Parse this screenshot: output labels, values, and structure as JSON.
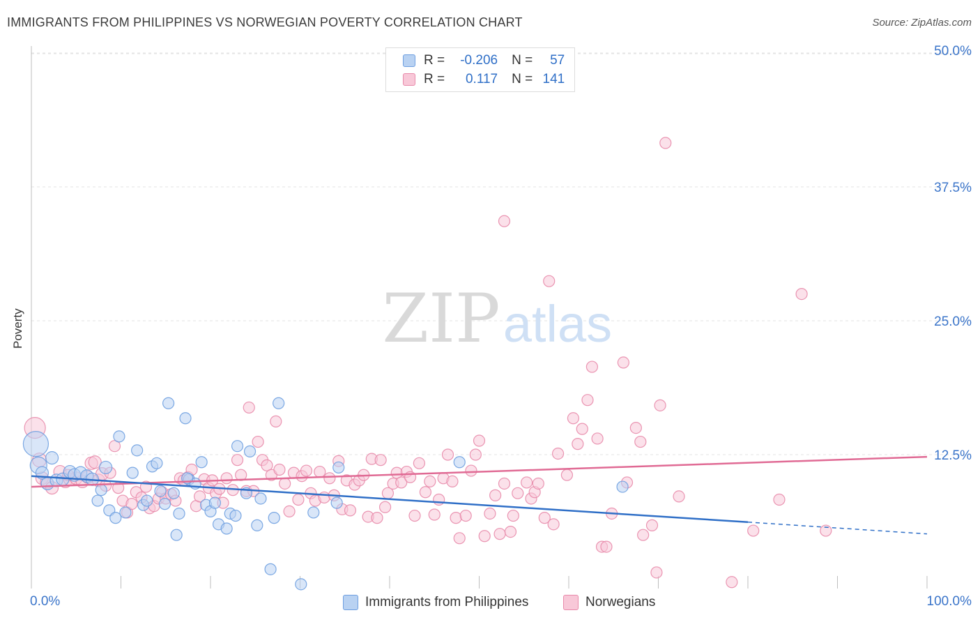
{
  "title": "IMMIGRANTS FROM PHILIPPINES VS NORWEGIAN POVERTY CORRELATION CHART",
  "source": "Source: ZipAtlas.com",
  "watermark": {
    "zip": "ZIP",
    "atlas": "atlas"
  },
  "legend_top": {
    "rows": [
      {
        "r_label": "R =",
        "r_value": "-0.206",
        "n_label": "N =",
        "n_value": "57"
      },
      {
        "r_label": "R =",
        "r_value": "0.117",
        "n_label": "N =",
        "n_value": "141"
      }
    ]
  },
  "legend_bottom": {
    "series1": "Immigrants from Philippines",
    "series2": "Norwegians"
  },
  "colors": {
    "blue_fill": "#b9d2f2",
    "blue_stroke": "#6d9ee0",
    "blue_line": "#2f6fc7",
    "pink_fill": "#f8c8d8",
    "pink_stroke": "#e889aa",
    "pink_line": "#e06a94",
    "axis_text": "#3a74c9",
    "grid": "#e3e3e3"
  },
  "chart_data": {
    "type": "scatter",
    "title": "IMMIGRANTS FROM PHILIPPINES VS NORWEGIAN POVERTY CORRELATION CHART",
    "xlabel": "",
    "ylabel": "Poverty",
    "xlim": [
      0,
      100
    ],
    "ylim": [
      0,
      52
    ],
    "x_tick_labels": [
      "0.0%",
      "100.0%"
    ],
    "y_ticks": [
      12.5,
      25.0,
      37.5,
      50.0
    ],
    "y_tick_labels": [
      "12.5%",
      "25.0%",
      "37.5%",
      "50.0%"
    ],
    "series": [
      {
        "name": "Immigrants from Philippines",
        "r": -0.206,
        "n": 57,
        "trend": {
          "x0": 0,
          "y0": 10.5,
          "x1": 80,
          "y1": 6.2,
          "dashed_to_x": 100,
          "dashed_to_y": 5.1
        },
        "points": [
          {
            "x": 0.5,
            "y": 13.5,
            "s": 18
          },
          {
            "x": 0.8,
            "y": 11.5,
            "s": 12
          },
          {
            "x": 1.2,
            "y": 10.8,
            "s": 9
          },
          {
            "x": 1.8,
            "y": 9.8,
            "s": 9
          },
          {
            "x": 2.3,
            "y": 12.2,
            "s": 9
          },
          {
            "x": 2.8,
            "y": 10.1,
            "s": 9
          },
          {
            "x": 3.5,
            "y": 10.2,
            "s": 9
          },
          {
            "x": 4.3,
            "y": 10.9,
            "s": 9
          },
          {
            "x": 4.8,
            "y": 10.6,
            "s": 9
          },
          {
            "x": 5.5,
            "y": 10.8,
            "s": 9
          },
          {
            "x": 6.2,
            "y": 10.5,
            "s": 9
          },
          {
            "x": 6.8,
            "y": 10.2,
            "s": 9
          },
          {
            "x": 7.4,
            "y": 8.2,
            "s": 8
          },
          {
            "x": 7.8,
            "y": 9.2,
            "s": 8
          },
          {
            "x": 8.3,
            "y": 11.3,
            "s": 9
          },
          {
            "x": 8.7,
            "y": 7.3,
            "s": 8
          },
          {
            "x": 9.4,
            "y": 6.6,
            "s": 8
          },
          {
            "x": 9.8,
            "y": 14.2,
            "s": 8
          },
          {
            "x": 10.5,
            "y": 7.1,
            "s": 8
          },
          {
            "x": 11.3,
            "y": 10.8,
            "s": 8
          },
          {
            "x": 11.8,
            "y": 12.9,
            "s": 8
          },
          {
            "x": 12.5,
            "y": 7.8,
            "s": 8
          },
          {
            "x": 12.9,
            "y": 8.2,
            "s": 8
          },
          {
            "x": 13.5,
            "y": 11.4,
            "s": 8
          },
          {
            "x": 14.0,
            "y": 11.7,
            "s": 8
          },
          {
            "x": 14.4,
            "y": 9.1,
            "s": 8
          },
          {
            "x": 14.9,
            "y": 7.9,
            "s": 8
          },
          {
            "x": 15.3,
            "y": 17.3,
            "s": 8
          },
          {
            "x": 15.9,
            "y": 8.9,
            "s": 8
          },
          {
            "x": 16.2,
            "y": 5.0,
            "s": 8
          },
          {
            "x": 16.5,
            "y": 7.0,
            "s": 8
          },
          {
            "x": 17.2,
            "y": 15.9,
            "s": 8
          },
          {
            "x": 17.6,
            "y": 10.2,
            "s": 8
          },
          {
            "x": 18.3,
            "y": 9.8,
            "s": 8
          },
          {
            "x": 19.0,
            "y": 11.8,
            "s": 8
          },
          {
            "x": 19.5,
            "y": 7.8,
            "s": 8
          },
          {
            "x": 20.0,
            "y": 7.2,
            "s": 8
          },
          {
            "x": 20.5,
            "y": 8.0,
            "s": 8
          },
          {
            "x": 20.9,
            "y": 6.0,
            "s": 8
          },
          {
            "x": 21.8,
            "y": 5.6,
            "s": 8
          },
          {
            "x": 22.2,
            "y": 7.0,
            "s": 8
          },
          {
            "x": 22.8,
            "y": 6.8,
            "s": 8
          },
          {
            "x": 23.0,
            "y": 13.3,
            "s": 8
          },
          {
            "x": 24.0,
            "y": 8.9,
            "s": 8
          },
          {
            "x": 24.4,
            "y": 12.8,
            "s": 8
          },
          {
            "x": 25.2,
            "y": 5.9,
            "s": 8
          },
          {
            "x": 25.6,
            "y": 8.4,
            "s": 8
          },
          {
            "x": 26.7,
            "y": 1.8,
            "s": 8
          },
          {
            "x": 27.1,
            "y": 6.6,
            "s": 8
          },
          {
            "x": 27.6,
            "y": 17.3,
            "s": 8
          },
          {
            "x": 30.1,
            "y": 0.4,
            "s": 8
          },
          {
            "x": 31.5,
            "y": 7.1,
            "s": 8
          },
          {
            "x": 34.1,
            "y": 8.0,
            "s": 8
          },
          {
            "x": 34.3,
            "y": 11.3,
            "s": 8
          },
          {
            "x": 47.8,
            "y": 11.8,
            "s": 8
          },
          {
            "x": 66.0,
            "y": 9.5,
            "s": 8
          },
          {
            "x": 17.4,
            "y": 10.3,
            "s": 8
          }
        ]
      },
      {
        "name": "Norwegians",
        "r": 0.117,
        "n": 141,
        "trend": {
          "x0": 0,
          "y0": 9.5,
          "x1": 100,
          "y1": 12.3
        },
        "points": [
          {
            "x": 0.4,
            "y": 15.0,
            "s": 15
          },
          {
            "x": 0.9,
            "y": 12.0,
            "s": 10
          },
          {
            "x": 1.2,
            "y": 10.3,
            "s": 9
          },
          {
            "x": 1.7,
            "y": 9.9,
            "s": 9
          },
          {
            "x": 2.3,
            "y": 9.4,
            "s": 9
          },
          {
            "x": 3.2,
            "y": 10.9,
            "s": 9
          },
          {
            "x": 3.8,
            "y": 10.0,
            "s": 9
          },
          {
            "x": 4.3,
            "y": 10.2,
            "s": 9
          },
          {
            "x": 5.0,
            "y": 10.3,
            "s": 9
          },
          {
            "x": 5.7,
            "y": 10.0,
            "s": 9
          },
          {
            "x": 6.3,
            "y": 10.4,
            "s": 9
          },
          {
            "x": 6.7,
            "y": 11.7,
            "s": 9
          },
          {
            "x": 7.1,
            "y": 11.8,
            "s": 9
          },
          {
            "x": 7.5,
            "y": 10.1,
            "s": 9
          },
          {
            "x": 7.9,
            "y": 10.7,
            "s": 9
          },
          {
            "x": 8.3,
            "y": 9.6,
            "s": 8
          },
          {
            "x": 8.8,
            "y": 10.8,
            "s": 8
          },
          {
            "x": 9.3,
            "y": 13.3,
            "s": 8
          },
          {
            "x": 9.7,
            "y": 9.4,
            "s": 8
          },
          {
            "x": 10.2,
            "y": 8.2,
            "s": 8
          },
          {
            "x": 10.7,
            "y": 7.1,
            "s": 8
          },
          {
            "x": 11.2,
            "y": 7.9,
            "s": 8
          },
          {
            "x": 11.7,
            "y": 9.0,
            "s": 8
          },
          {
            "x": 12.3,
            "y": 8.5,
            "s": 8
          },
          {
            "x": 12.8,
            "y": 9.5,
            "s": 8
          },
          {
            "x": 13.2,
            "y": 7.5,
            "s": 8
          },
          {
            "x": 13.7,
            "y": 7.7,
            "s": 8
          },
          {
            "x": 14.2,
            "y": 8.4,
            "s": 8
          },
          {
            "x": 14.6,
            "y": 9.0,
            "s": 8
          },
          {
            "x": 15.0,
            "y": 8.4,
            "s": 8
          },
          {
            "x": 15.6,
            "y": 8.8,
            "s": 8
          },
          {
            "x": 16.1,
            "y": 8.2,
            "s": 8
          },
          {
            "x": 16.6,
            "y": 10.3,
            "s": 8
          },
          {
            "x": 17.0,
            "y": 10.1,
            "s": 8
          },
          {
            "x": 17.5,
            "y": 10.4,
            "s": 8
          },
          {
            "x": 17.9,
            "y": 11.1,
            "s": 8
          },
          {
            "x": 18.4,
            "y": 7.7,
            "s": 8
          },
          {
            "x": 18.8,
            "y": 8.6,
            "s": 8
          },
          {
            "x": 19.3,
            "y": 10.2,
            "s": 8
          },
          {
            "x": 19.8,
            "y": 9.4,
            "s": 8
          },
          {
            "x": 20.2,
            "y": 10.1,
            "s": 8
          },
          {
            "x": 20.6,
            "y": 8.9,
            "s": 8
          },
          {
            "x": 21.0,
            "y": 9.3,
            "s": 8
          },
          {
            "x": 21.4,
            "y": 8.0,
            "s": 8
          },
          {
            "x": 21.8,
            "y": 10.3,
            "s": 8
          },
          {
            "x": 22.5,
            "y": 9.2,
            "s": 8
          },
          {
            "x": 23.0,
            "y": 12.0,
            "s": 8
          },
          {
            "x": 23.4,
            "y": 10.6,
            "s": 8
          },
          {
            "x": 24.0,
            "y": 9.1,
            "s": 8
          },
          {
            "x": 24.3,
            "y": 16.9,
            "s": 8
          },
          {
            "x": 24.8,
            "y": 9.1,
            "s": 8
          },
          {
            "x": 25.3,
            "y": 13.7,
            "s": 8
          },
          {
            "x": 25.8,
            "y": 12.0,
            "s": 8
          },
          {
            "x": 26.3,
            "y": 11.5,
            "s": 8
          },
          {
            "x": 26.8,
            "y": 10.6,
            "s": 8
          },
          {
            "x": 27.3,
            "y": 15.6,
            "s": 8
          },
          {
            "x": 27.7,
            "y": 11.1,
            "s": 8
          },
          {
            "x": 28.3,
            "y": 9.8,
            "s": 8
          },
          {
            "x": 28.8,
            "y": 7.2,
            "s": 8
          },
          {
            "x": 29.3,
            "y": 10.8,
            "s": 8
          },
          {
            "x": 29.8,
            "y": 8.3,
            "s": 8
          },
          {
            "x": 30.2,
            "y": 10.5,
            "s": 8
          },
          {
            "x": 30.7,
            "y": 11.0,
            "s": 8
          },
          {
            "x": 31.2,
            "y": 8.9,
            "s": 8
          },
          {
            "x": 31.7,
            "y": 8.2,
            "s": 8
          },
          {
            "x": 32.2,
            "y": 10.9,
            "s": 8
          },
          {
            "x": 32.7,
            "y": 8.5,
            "s": 8
          },
          {
            "x": 33.3,
            "y": 10.3,
            "s": 8
          },
          {
            "x": 33.8,
            "y": 8.7,
            "s": 8
          },
          {
            "x": 34.3,
            "y": 11.9,
            "s": 8
          },
          {
            "x": 34.7,
            "y": 7.4,
            "s": 8
          },
          {
            "x": 35.2,
            "y": 10.1,
            "s": 8
          },
          {
            "x": 35.6,
            "y": 7.3,
            "s": 8
          },
          {
            "x": 36.1,
            "y": 9.7,
            "s": 8
          },
          {
            "x": 36.6,
            "y": 10.1,
            "s": 8
          },
          {
            "x": 37.1,
            "y": 10.6,
            "s": 8
          },
          {
            "x": 37.6,
            "y": 6.7,
            "s": 8
          },
          {
            "x": 38.0,
            "y": 12.1,
            "s": 8
          },
          {
            "x": 38.6,
            "y": 6.6,
            "s": 8
          },
          {
            "x": 39.0,
            "y": 12.0,
            "s": 8
          },
          {
            "x": 39.5,
            "y": 7.6,
            "s": 8
          },
          {
            "x": 39.8,
            "y": 8.9,
            "s": 8
          },
          {
            "x": 40.4,
            "y": 9.8,
            "s": 8
          },
          {
            "x": 40.8,
            "y": 10.8,
            "s": 8
          },
          {
            "x": 41.3,
            "y": 9.9,
            "s": 8
          },
          {
            "x": 41.9,
            "y": 10.9,
            "s": 8
          },
          {
            "x": 42.3,
            "y": 10.4,
            "s": 8
          },
          {
            "x": 42.8,
            "y": 6.8,
            "s": 8
          },
          {
            "x": 43.3,
            "y": 11.7,
            "s": 8
          },
          {
            "x": 44.0,
            "y": 9.0,
            "s": 8
          },
          {
            "x": 44.5,
            "y": 10.0,
            "s": 8
          },
          {
            "x": 45.0,
            "y": 6.9,
            "s": 8
          },
          {
            "x": 45.5,
            "y": 8.3,
            "s": 8
          },
          {
            "x": 46.0,
            "y": 10.3,
            "s": 8
          },
          {
            "x": 46.5,
            "y": 12.5,
            "s": 8
          },
          {
            "x": 47.0,
            "y": 10.0,
            "s": 8
          },
          {
            "x": 47.4,
            "y": 6.6,
            "s": 8
          },
          {
            "x": 47.8,
            "y": 4.7,
            "s": 8
          },
          {
            "x": 48.5,
            "y": 6.8,
            "s": 8
          },
          {
            "x": 49.1,
            "y": 11.0,
            "s": 8
          },
          {
            "x": 49.6,
            "y": 12.5,
            "s": 8
          },
          {
            "x": 50.0,
            "y": 13.8,
            "s": 8
          },
          {
            "x": 50.6,
            "y": 4.9,
            "s": 8
          },
          {
            "x": 51.2,
            "y": 7.0,
            "s": 8
          },
          {
            "x": 51.8,
            "y": 8.7,
            "s": 8
          },
          {
            "x": 52.3,
            "y": 5.1,
            "s": 8
          },
          {
            "x": 52.8,
            "y": 9.8,
            "s": 8
          },
          {
            "x": 53.5,
            "y": 5.3,
            "s": 8
          },
          {
            "x": 53.8,
            "y": 6.8,
            "s": 8
          },
          {
            "x": 54.3,
            "y": 8.9,
            "s": 8
          },
          {
            "x": 55.3,
            "y": 9.9,
            "s": 8
          },
          {
            "x": 55.8,
            "y": 8.4,
            "s": 8
          },
          {
            "x": 56.2,
            "y": 9.0,
            "s": 8
          },
          {
            "x": 56.6,
            "y": 9.8,
            "s": 8
          },
          {
            "x": 57.3,
            "y": 6.6,
            "s": 8
          },
          {
            "x": 57.8,
            "y": 28.7,
            "s": 8
          },
          {
            "x": 58.3,
            "y": 6.0,
            "s": 8
          },
          {
            "x": 58.8,
            "y": 12.6,
            "s": 8
          },
          {
            "x": 60.5,
            "y": 15.9,
            "s": 8
          },
          {
            "x": 61.0,
            "y": 13.5,
            "s": 8
          },
          {
            "x": 61.5,
            "y": 14.9,
            "s": 8
          },
          {
            "x": 62.1,
            "y": 17.6,
            "s": 8
          },
          {
            "x": 62.6,
            "y": 20.7,
            "s": 8
          },
          {
            "x": 63.2,
            "y": 14.0,
            "s": 8
          },
          {
            "x": 63.7,
            "y": 3.9,
            "s": 8
          },
          {
            "x": 64.2,
            "y": 3.9,
            "s": 8
          },
          {
            "x": 64.8,
            "y": 7.0,
            "s": 8
          },
          {
            "x": 66.1,
            "y": 21.1,
            "s": 8
          },
          {
            "x": 66.5,
            "y": 9.9,
            "s": 8
          },
          {
            "x": 67.5,
            "y": 15.0,
            "s": 8
          },
          {
            "x": 68.0,
            "y": 13.7,
            "s": 8
          },
          {
            "x": 68.3,
            "y": 5.0,
            "s": 8
          },
          {
            "x": 69.3,
            "y": 5.9,
            "s": 8
          },
          {
            "x": 69.8,
            "y": 1.5,
            "s": 8
          },
          {
            "x": 70.2,
            "y": 17.1,
            "s": 8
          },
          {
            "x": 70.8,
            "y": 41.6,
            "s": 8
          },
          {
            "x": 72.3,
            "y": 8.6,
            "s": 8
          },
          {
            "x": 78.2,
            "y": 0.6,
            "s": 8
          },
          {
            "x": 80.6,
            "y": 5.4,
            "s": 8
          },
          {
            "x": 83.5,
            "y": 8.3,
            "s": 8
          },
          {
            "x": 86.0,
            "y": 27.5,
            "s": 8
          },
          {
            "x": 88.7,
            "y": 5.4,
            "s": 8
          },
          {
            "x": 52.8,
            "y": 34.3,
            "s": 8
          },
          {
            "x": 59.8,
            "y": 10.6,
            "s": 8
          },
          {
            "x": 4.1,
            "y": 10.6,
            "s": 8
          }
        ]
      }
    ]
  }
}
